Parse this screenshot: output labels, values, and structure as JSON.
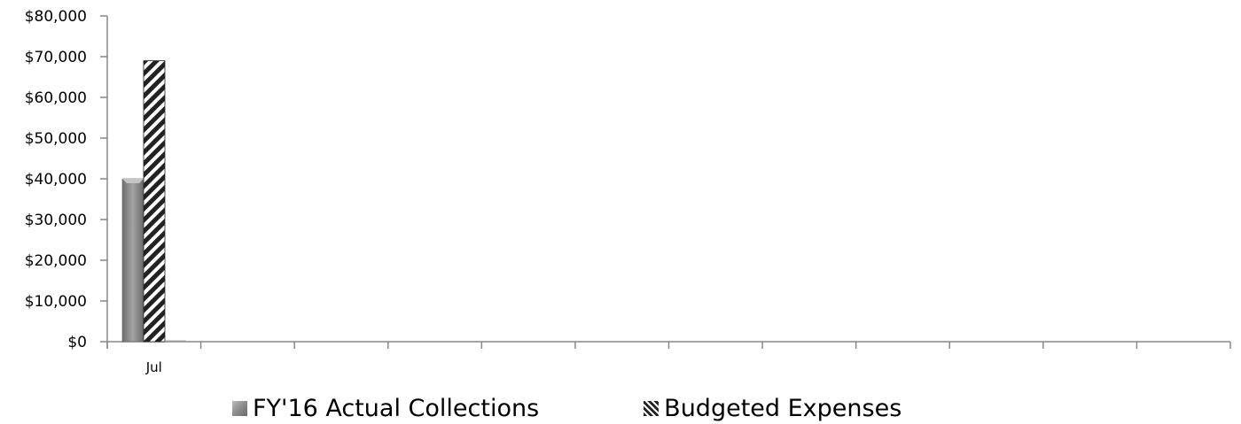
{
  "chart_data": {
    "type": "bar",
    "categories": [
      "Jul",
      "",
      "",
      "",
      "",
      "",
      "",
      "",
      "",
      "",
      "",
      ""
    ],
    "series": [
      {
        "name": "FY'16 Actual Collections",
        "values": [
          40000,
          0,
          0,
          0,
          0,
          0,
          0,
          0,
          0,
          0,
          0,
          0
        ],
        "color": "#8c8c8c",
        "pattern": "solid"
      },
      {
        "name": "Budgeted Expenses",
        "values": [
          69000,
          0,
          0,
          0,
          0,
          0,
          0,
          0,
          0,
          0,
          0,
          0
        ],
        "color": "#222222",
        "pattern": "diagonal-stripes"
      }
    ],
    "extra_bar_value": 300,
    "y_ticks": [
      "$0",
      "$10,000",
      "$20,000",
      "$30,000",
      "$40,000",
      "$50,000",
      "$60,000",
      "$70,000",
      "$80,000"
    ],
    "ylim": [
      0,
      80000
    ],
    "legend_position": "bottom",
    "grid": false
  }
}
